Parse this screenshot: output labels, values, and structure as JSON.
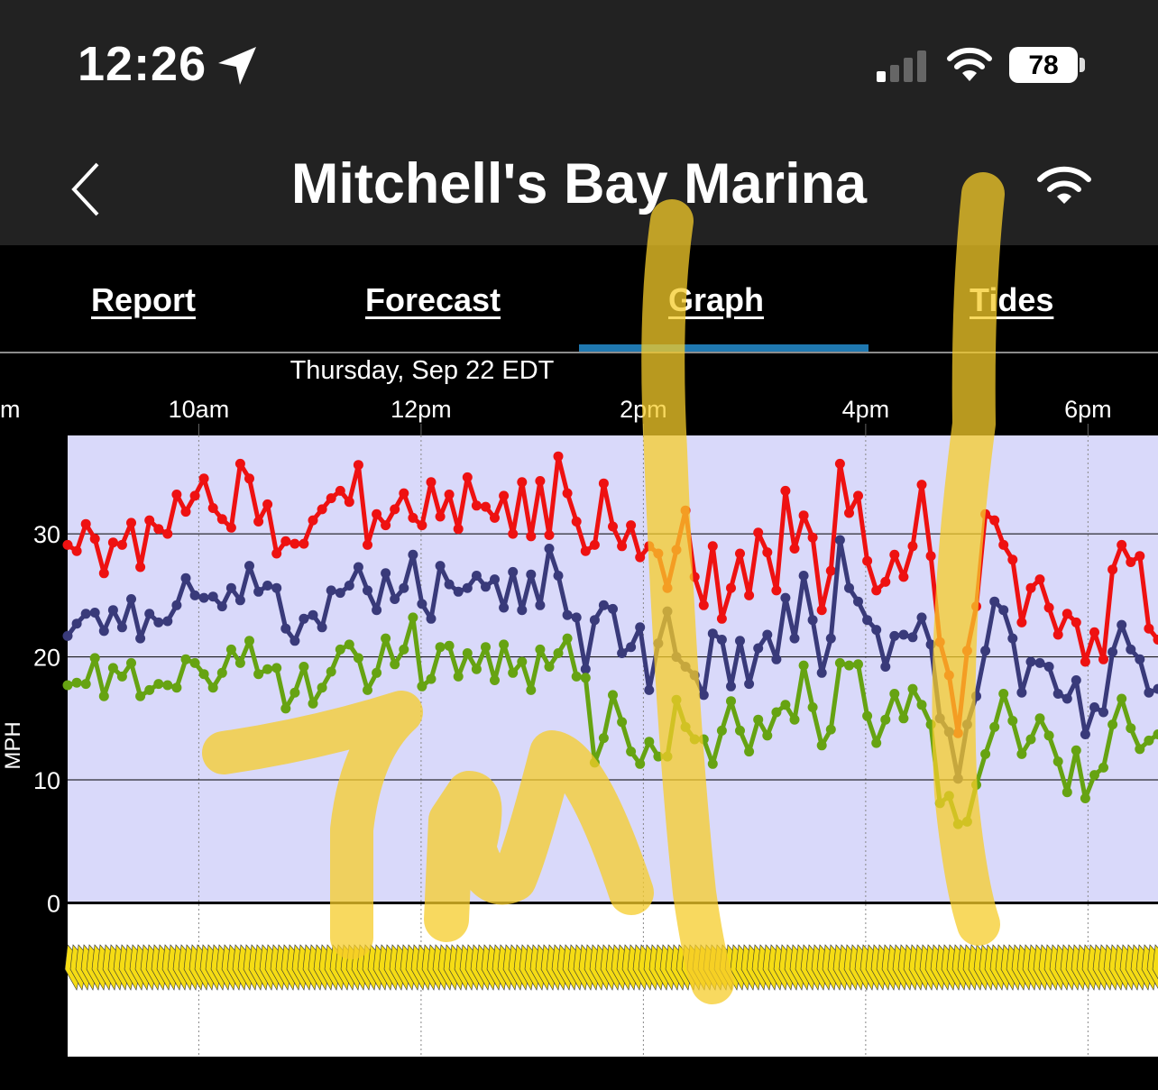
{
  "status_bar": {
    "time": "12:26",
    "battery": "78",
    "icons": [
      "location-arrow-icon",
      "cell-signal-icon",
      "wifi-icon",
      "battery-icon"
    ]
  },
  "nav": {
    "title": "Mitchell's Bay Marina",
    "back_icon": "chevron-left-icon",
    "right_icon": "wifi-icon"
  },
  "tabs": [
    {
      "label": "Report",
      "active": false
    },
    {
      "label": "Forecast",
      "active": false
    },
    {
      "label": "Graph",
      "active": true
    },
    {
      "label": "Tides",
      "active": false
    }
  ],
  "colors": {
    "gust": "#ee1111",
    "average": "#393a7a",
    "lull": "#66a312",
    "fill": "#d9d9fa",
    "arrows": "#f5dc14",
    "active_tab": "#1f78b0",
    "highlight": "#f5cc2a"
  },
  "chart_data": {
    "type": "line",
    "date_label": "Thursday, Sep 22 EDT",
    "x_tick_labels": [
      "m",
      "10am",
      "12pm",
      "2pm",
      "4pm",
      "6pm"
    ],
    "x_range_hours": [
      8.82,
      18.63
    ],
    "ylabel": "MPH",
    "y_tick_labels": [
      "30",
      "20",
      "10",
      "0"
    ],
    "y_ticks": [
      30,
      20,
      10,
      0
    ],
    "ylim": [
      -12.5,
      38
    ],
    "grid": true,
    "series": [
      {
        "key": "gust",
        "values": [
          29.1,
          28.6,
          30.8,
          29.6,
          26.8,
          29.3,
          29.1,
          30.9,
          27.3,
          31.1,
          30.4,
          30.0,
          33.2,
          31.8,
          33.1,
          34.5,
          32.1,
          31.2,
          30.5,
          35.7,
          34.5,
          31.0,
          32.4,
          28.4,
          29.4,
          29.2,
          29.2,
          31.1,
          32.0,
          32.9,
          33.5,
          32.6,
          35.6,
          29.1,
          31.6,
          30.7,
          32.0,
          33.3,
          31.3,
          30.7,
          34.2,
          31.4,
          33.2,
          30.4,
          34.6,
          32.3,
          32.2,
          31.3,
          33.1,
          30.0,
          34.2,
          29.8,
          34.3,
          29.9,
          36.3,
          33.3,
          31.0,
          28.6,
          29.1,
          34.1,
          30.6,
          29.0,
          30.7,
          28.1,
          29.0,
          28.4,
          25.6,
          28.7,
          31.9,
          26.5,
          24.2,
          29.0,
          23.1,
          25.6,
          28.4,
          25.0,
          30.1,
          28.5,
          25.4,
          33.5,
          28.8,
          31.5,
          29.7,
          23.8,
          27.0,
          35.7,
          31.7,
          33.1,
          27.8,
          25.4,
          26.1,
          28.3,
          26.5,
          29.0,
          34.0,
          28.2,
          21.2,
          18.5,
          13.8,
          20.5,
          24.1,
          31.6,
          31.1,
          29.1,
          27.9,
          22.8,
          25.6,
          26.3,
          24.0,
          21.8,
          23.5,
          22.8,
          19.6,
          22.0,
          19.8,
          27.1,
          29.1,
          27.7,
          28.2,
          22.3,
          21.4
        ]
      },
      {
        "key": "average",
        "values": [
          21.7,
          22.7,
          23.5,
          23.6,
          22.1,
          23.8,
          22.4,
          24.7,
          21.5,
          23.5,
          22.8,
          22.9,
          24.2,
          26.4,
          25.0,
          24.8,
          24.9,
          24.1,
          25.6,
          24.6,
          27.4,
          25.3,
          25.8,
          25.6,
          22.3,
          21.3,
          23.1,
          23.4,
          22.4,
          25.4,
          25.2,
          25.8,
          27.3,
          25.4,
          23.8,
          26.8,
          24.7,
          25.6,
          28.3,
          24.3,
          23.1,
          27.4,
          25.9,
          25.3,
          25.6,
          26.6,
          25.7,
          26.3,
          24.0,
          26.9,
          23.8,
          26.7,
          24.2,
          28.8,
          26.6,
          23.4,
          23.2,
          19.0,
          23.0,
          24.2,
          23.9,
          20.3,
          20.8,
          22.4,
          17.3,
          21.1,
          23.7,
          20.0,
          19.2,
          18.5,
          16.9,
          21.9,
          21.4,
          17.6,
          21.3,
          17.8,
          20.7,
          21.8,
          19.8,
          24.8,
          21.5,
          26.6,
          23.0,
          18.7,
          21.5,
          29.5,
          25.6,
          24.5,
          23.0,
          22.2,
          19.2,
          21.7,
          21.8,
          21.6,
          23.2,
          21.0,
          15.0,
          13.9,
          10.1,
          14.5,
          16.8,
          20.5,
          24.5,
          23.8,
          21.5,
          17.1,
          19.6,
          19.5,
          19.2,
          17.0,
          16.6,
          18.1,
          13.7,
          15.9,
          15.5,
          20.4,
          22.6,
          20.6,
          19.8,
          17.1,
          17.4
        ]
      },
      {
        "key": "lull",
        "values": [
          17.7,
          17.9,
          17.8,
          19.9,
          16.8,
          19.1,
          18.4,
          19.5,
          16.8,
          17.3,
          17.8,
          17.7,
          17.5,
          19.8,
          19.5,
          18.6,
          17.5,
          18.7,
          20.6,
          19.5,
          21.3,
          18.6,
          19.0,
          19.1,
          15.8,
          17.1,
          19.2,
          16.2,
          17.5,
          18.8,
          20.6,
          21.0,
          19.9,
          17.3,
          18.7,
          21.5,
          19.4,
          20.6,
          23.2,
          17.6,
          18.2,
          20.8,
          20.9,
          18.4,
          20.3,
          19.0,
          20.8,
          18.1,
          21.0,
          18.7,
          19.6,
          17.3,
          20.6,
          19.2,
          20.3,
          21.5,
          18.4,
          18.3,
          11.4,
          13.4,
          16.9,
          14.7,
          12.3,
          11.3,
          13.1,
          11.9,
          11.9,
          16.5,
          14.3,
          13.3,
          13.3,
          11.3,
          14.0,
          16.4,
          14.0,
          12.3,
          14.9,
          13.6,
          15.5,
          16.1,
          14.9,
          19.3,
          15.9,
          12.8,
          14.1,
          19.5,
          19.3,
          19.4,
          15.2,
          13.0,
          14.9,
          17.0,
          15.0,
          17.4,
          16.1,
          14.5,
          8.1,
          8.7,
          6.4,
          6.6,
          9.6,
          12.1,
          14.3,
          17.0,
          14.8,
          12.1,
          13.3,
          15.0,
          13.6,
          11.5,
          9.0,
          12.4,
          8.5,
          10.4,
          11.0,
          14.5,
          16.6,
          14.2,
          12.5,
          13.2,
          13.7
        ]
      }
    ]
  }
}
